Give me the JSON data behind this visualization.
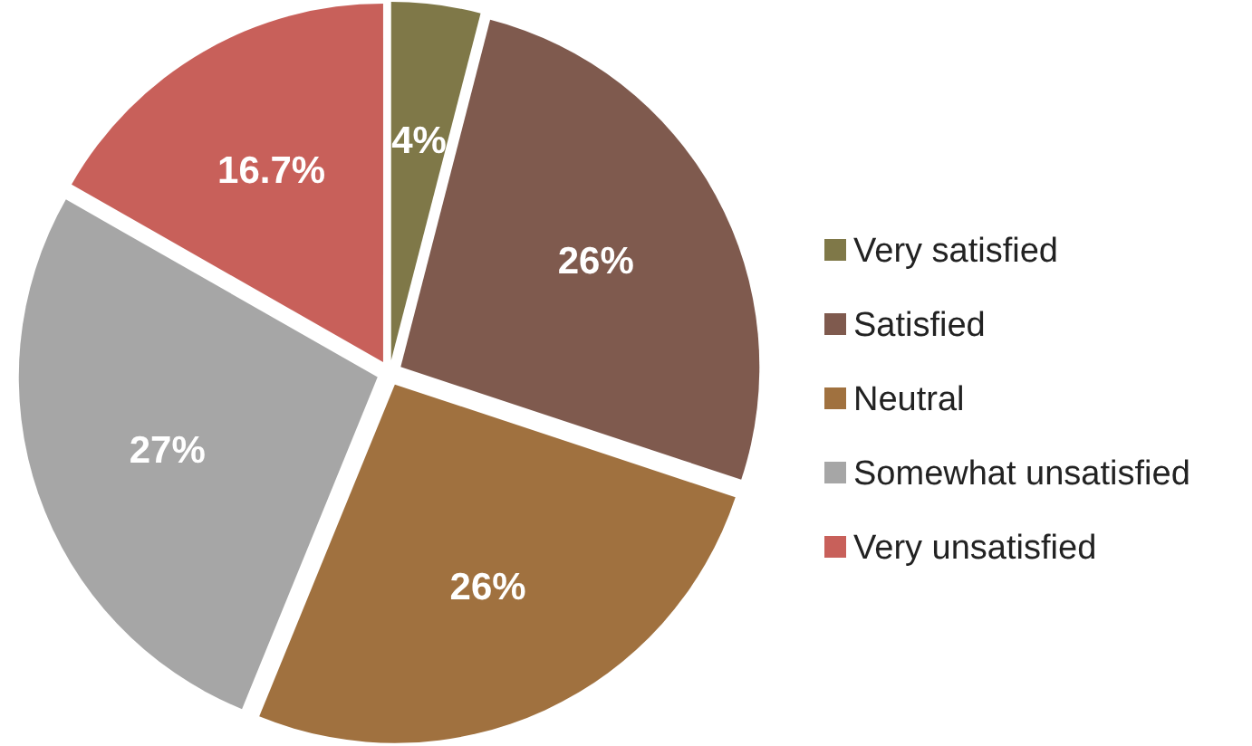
{
  "chart_data": {
    "type": "pie",
    "categories": [
      "Very satisfied",
      "Satisfied",
      "Neutral",
      "Somewhat unsatisfied",
      "Very unsatisfied"
    ],
    "values": [
      4,
      26,
      26,
      27,
      16.7
    ],
    "value_labels": [
      "4%",
      "26%",
      "26%",
      "27%",
      "16.7%"
    ],
    "colors": [
      "#7f7848",
      "#7f5a4e",
      "#a0713f",
      "#a6a6a6",
      "#c8605a"
    ],
    "legend": "right"
  }
}
